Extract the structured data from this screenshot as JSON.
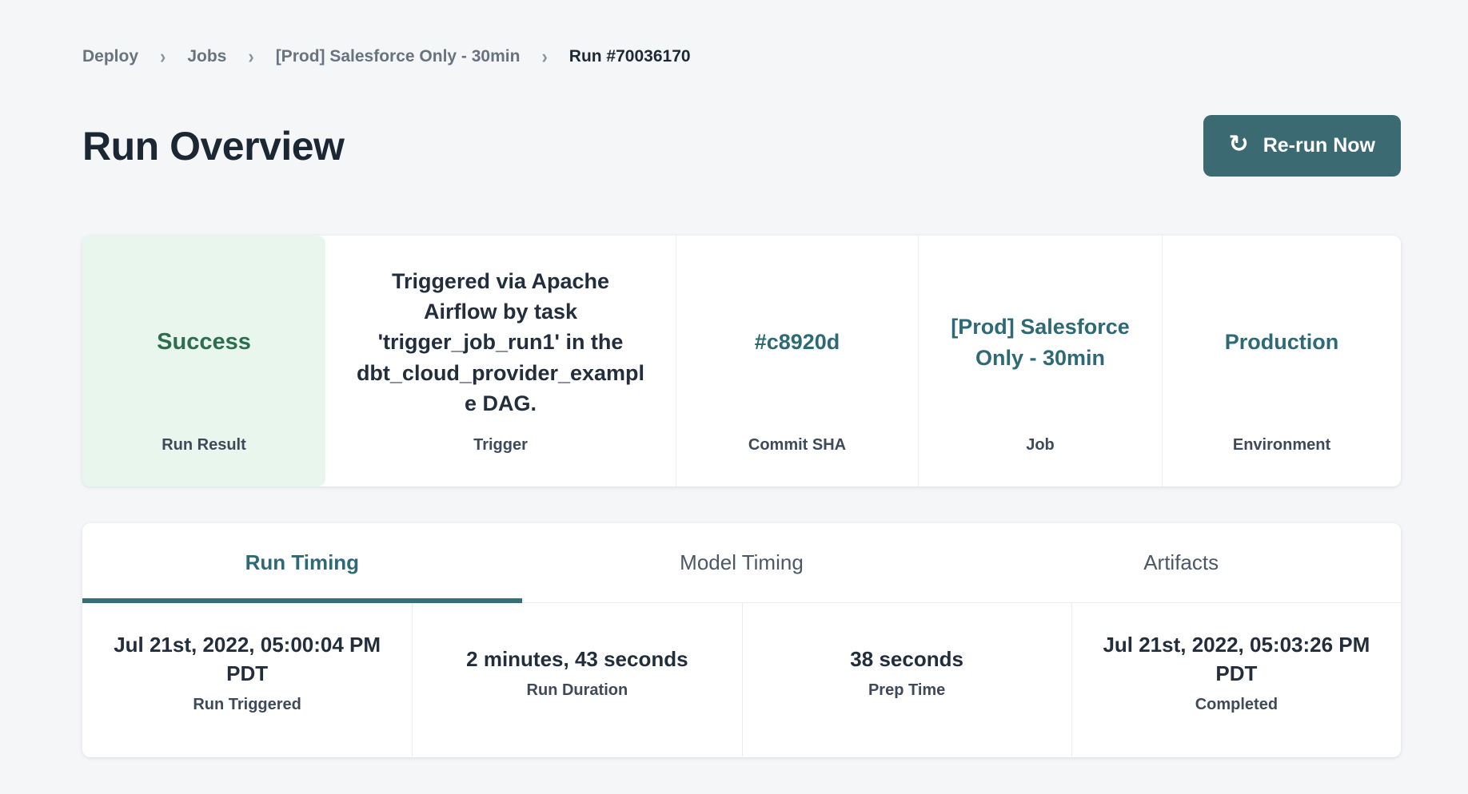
{
  "breadcrumb": {
    "separator": "›",
    "items": [
      {
        "label": "Deploy",
        "active": false
      },
      {
        "label": "Jobs",
        "active": false
      },
      {
        "label": "[Prod] Salesforce Only - 30min",
        "active": false
      },
      {
        "label": "Run #70036170",
        "active": true
      }
    ]
  },
  "header": {
    "title": "Run Overview",
    "rerun_button": {
      "label": "Re-run Now",
      "icon": "↻"
    }
  },
  "summary_cards": [
    {
      "value": "Success",
      "label": "Run Result",
      "type": "success"
    },
    {
      "value": "Triggered via Apache Airflow by task 'trigger_job_run1' in the dbt_cloud_provider_example DAG.",
      "label": "Trigger",
      "type": "plain"
    },
    {
      "value": "#c8920d",
      "label": "Commit SHA",
      "type": "link"
    },
    {
      "value": "[Prod] Salesforce Only - 30min",
      "label": "Job",
      "type": "link"
    },
    {
      "value": "Production",
      "label": "Environment",
      "type": "link"
    }
  ],
  "tabs": [
    {
      "label": "Run Timing",
      "active": true
    },
    {
      "label": "Model Timing",
      "active": false
    },
    {
      "label": "Artifacts",
      "active": false
    }
  ],
  "timing_cards": [
    {
      "value": "Jul 21st, 2022, 05:00:04 PM PDT",
      "label": "Run Triggered"
    },
    {
      "value": "2 minutes, 43 seconds",
      "label": "Run Duration"
    },
    {
      "value": "38 seconds",
      "label": "Prep Time"
    },
    {
      "value": "Jul 21st, 2022, 05:03:26 PM PDT",
      "label": "Completed"
    }
  ],
  "colors": {
    "accent_teal": "#2d6a75",
    "button_bg": "#3b6a72",
    "tab_underline": "#357079",
    "success_text": "#2d6e4e",
    "success_bg": "#e8f6ee",
    "page_bg": "#f5f6f8",
    "card_bg": "#ffffff",
    "text_dark": "#232e3c",
    "text_label": "#3e4a59",
    "breadcrumb_text": "#67737f",
    "divider": "#ececf0"
  }
}
